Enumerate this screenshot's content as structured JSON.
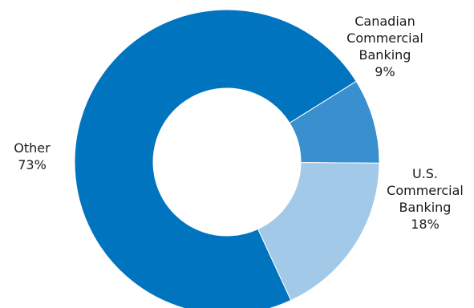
{
  "chart_data": {
    "type": "pie",
    "style": "donut",
    "title": "",
    "slices": [
      {
        "label_lines": [
          "Canadian",
          "Commercial",
          "Banking"
        ],
        "value_label": "9%",
        "value": 9,
        "color": "#3a8fce"
      },
      {
        "label_lines": [
          "U.S.",
          "Commercial",
          "Banking"
        ],
        "value_label": "18%",
        "value": 18,
        "color": "#a2c9e8"
      },
      {
        "label_lines": [
          "Other"
        ],
        "value_label": "73%",
        "value": 73,
        "color": "#0074bf"
      }
    ],
    "legend": "none"
  }
}
